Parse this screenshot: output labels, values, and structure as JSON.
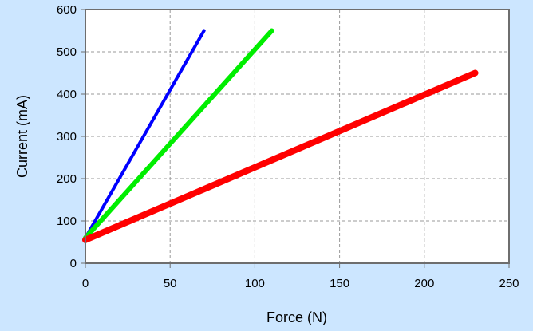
{
  "chart_data": {
    "type": "line",
    "title": "",
    "xlabel": "Force (N)",
    "ylabel": "Current (mA)",
    "xlim": [
      0,
      250
    ],
    "ylim": [
      0,
      600
    ],
    "x_ticks": [
      "0",
      "50",
      "100",
      "150",
      "200",
      "250"
    ],
    "y_ticks": [
      "0",
      "100",
      "200",
      "300",
      "400",
      "500",
      "600"
    ],
    "grid": true,
    "legend": "none",
    "series": [
      {
        "color": "#0000ff",
        "line_width": "thin",
        "x": [
          0,
          70
        ],
        "y": [
          60,
          550
        ]
      },
      {
        "color": "#00ee00",
        "line_width": "medium",
        "x": [
          0,
          110
        ],
        "y": [
          60,
          550
        ]
      },
      {
        "color": "#ff0000",
        "line_width": "thick",
        "x": [
          0,
          230
        ],
        "y": [
          55,
          450
        ]
      }
    ]
  }
}
